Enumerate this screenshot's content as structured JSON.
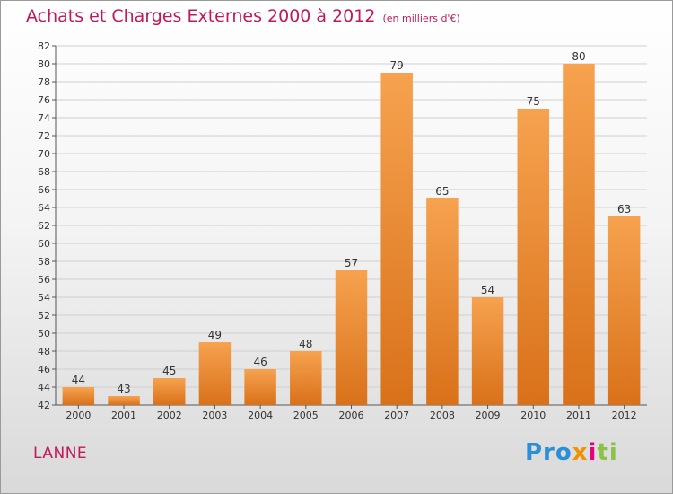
{
  "title": "Achats et Charges Externes 2000 à 2012",
  "subtitle": "(en milliers d'€)",
  "commune": "LANNE",
  "logo": {
    "p1": "Pro",
    "p2": "x",
    "p3": "i",
    "p4": "ti"
  },
  "colors": {
    "title": "#c2185b",
    "bar_light": "#f6a24f",
    "bar_dark": "#d9711a",
    "grid": "#cfcfcf"
  },
  "chart_data": {
    "type": "bar",
    "title": "Achats et Charges Externes 2000 à 2012",
    "xlabel": "",
    "ylabel": "",
    "categories": [
      "2000",
      "2001",
      "2002",
      "2003",
      "2004",
      "2005",
      "2006",
      "2007",
      "2008",
      "2009",
      "2010",
      "2011",
      "2012"
    ],
    "values": [
      44,
      43,
      45,
      49,
      46,
      48,
      57,
      79,
      65,
      54,
      75,
      80,
      63
    ],
    "ylim": [
      42,
      82
    ],
    "ytick_step": 2,
    "grid": true
  }
}
